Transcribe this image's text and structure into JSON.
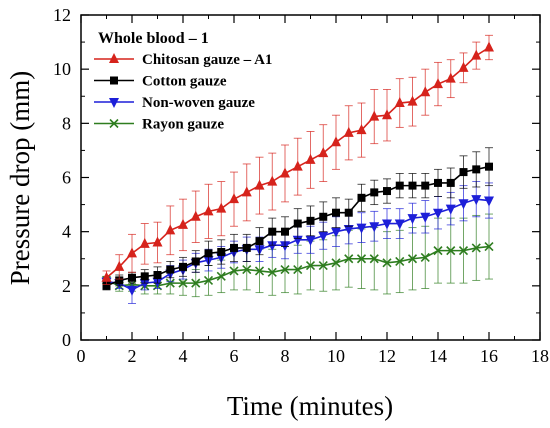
{
  "chart_data": {
    "type": "line",
    "title": "",
    "xlabel": "Time (minutes)",
    "ylabel": "Pressure drop (mm)",
    "xlim": [
      0,
      18
    ],
    "ylim": [
      0,
      12
    ],
    "xticks": [
      0,
      2,
      4,
      6,
      8,
      10,
      12,
      14,
      16,
      18
    ],
    "yticks": [
      0,
      2,
      4,
      6,
      8,
      10,
      12
    ],
    "grid": false,
    "legend": {
      "title": "Whole blood – 1",
      "placement": "top-left"
    },
    "x": [
      1.0,
      1.5,
      2.0,
      2.5,
      3.0,
      3.5,
      4.0,
      4.5,
      5.0,
      5.5,
      6.0,
      6.5,
      7.0,
      7.5,
      8.0,
      8.5,
      9.0,
      9.5,
      10.0,
      10.5,
      11.0,
      11.5,
      12.0,
      12.5,
      13.0,
      13.5,
      14.0,
      14.5,
      15.0,
      15.5,
      16.0
    ],
    "series": [
      {
        "name": "Chitosan gauze – A1",
        "color": "#d6231c",
        "marker": "triangle-up",
        "values": [
          2.3,
          2.7,
          3.2,
          3.55,
          3.6,
          4.05,
          4.25,
          4.55,
          4.75,
          4.85,
          5.2,
          5.45,
          5.7,
          5.85,
          6.15,
          6.4,
          6.65,
          6.9,
          7.3,
          7.65,
          7.75,
          8.25,
          8.3,
          8.75,
          8.8,
          9.15,
          9.45,
          9.65,
          10.05,
          10.5,
          10.8
        ],
        "errors": [
          0.25,
          0.45,
          0.7,
          0.75,
          0.75,
          0.9,
          0.95,
          0.95,
          1.0,
          1.0,
          1.0,
          1.05,
          1.05,
          1.05,
          1.05,
          1.05,
          1.05,
          1.05,
          1.0,
          1.0,
          1.0,
          1.0,
          0.95,
          0.9,
          0.9,
          0.85,
          0.8,
          0.7,
          0.55,
          0.5,
          0.45
        ]
      },
      {
        "name": "Cotton gauze",
        "color": "#000000",
        "marker": "square",
        "values": [
          2.0,
          2.2,
          2.3,
          2.35,
          2.4,
          2.6,
          2.7,
          2.9,
          3.2,
          3.25,
          3.4,
          3.4,
          3.65,
          4.0,
          4.0,
          4.3,
          4.4,
          4.55,
          4.7,
          4.7,
          5.25,
          5.45,
          5.5,
          5.7,
          5.7,
          5.7,
          5.8,
          5.8,
          6.2,
          6.3,
          6.4
        ],
        "errors": [
          0.15,
          0.2,
          0.2,
          0.25,
          0.3,
          0.3,
          0.35,
          0.4,
          0.45,
          0.45,
          0.5,
          0.5,
          0.5,
          0.5,
          0.55,
          0.55,
          0.55,
          0.55,
          0.55,
          0.5,
          0.5,
          0.45,
          0.45,
          0.45,
          0.45,
          0.45,
          0.5,
          0.55,
          0.6,
          0.65,
          0.7
        ]
      },
      {
        "name": "Non-woven gauze",
        "color": "#1d1fd8",
        "marker": "triangle-down",
        "values": [
          2.15,
          2.1,
          1.85,
          2.1,
          2.15,
          2.45,
          2.6,
          2.85,
          2.95,
          3.05,
          3.25,
          3.35,
          3.35,
          3.5,
          3.5,
          3.7,
          3.7,
          3.85,
          4.0,
          4.1,
          4.15,
          4.2,
          4.3,
          4.3,
          4.5,
          4.55,
          4.7,
          4.85,
          5.05,
          5.2,
          5.15
        ],
        "errors": [
          0.15,
          0.2,
          0.5,
          0.25,
          0.25,
          0.3,
          0.35,
          0.35,
          0.4,
          0.4,
          0.4,
          0.45,
          0.45,
          0.45,
          0.5,
          0.5,
          0.5,
          0.5,
          0.55,
          0.55,
          0.55,
          0.55,
          0.55,
          0.55,
          0.55,
          0.6,
          0.6,
          0.6,
          0.65,
          0.65,
          0.65
        ]
      },
      {
        "name": "Rayon gauze",
        "color": "#2e7d1f",
        "marker": "x",
        "values": [
          2.2,
          2.0,
          2.05,
          2.0,
          2.0,
          2.1,
          2.1,
          2.1,
          2.2,
          2.35,
          2.55,
          2.6,
          2.55,
          2.5,
          2.6,
          2.6,
          2.75,
          2.75,
          2.85,
          3.0,
          3.0,
          3.0,
          2.85,
          2.9,
          3.0,
          3.05,
          3.3,
          3.3,
          3.3,
          3.4,
          3.45
        ],
        "errors": [
          0.15,
          0.2,
          0.25,
          0.3,
          0.3,
          0.4,
          0.45,
          0.5,
          0.55,
          0.6,
          0.7,
          0.75,
          0.8,
          0.85,
          0.85,
          0.9,
          0.9,
          0.95,
          1.0,
          1.05,
          1.1,
          1.15,
          1.15,
          1.15,
          1.15,
          1.15,
          1.2,
          1.2,
          1.2,
          1.2,
          1.2
        ]
      }
    ]
  }
}
